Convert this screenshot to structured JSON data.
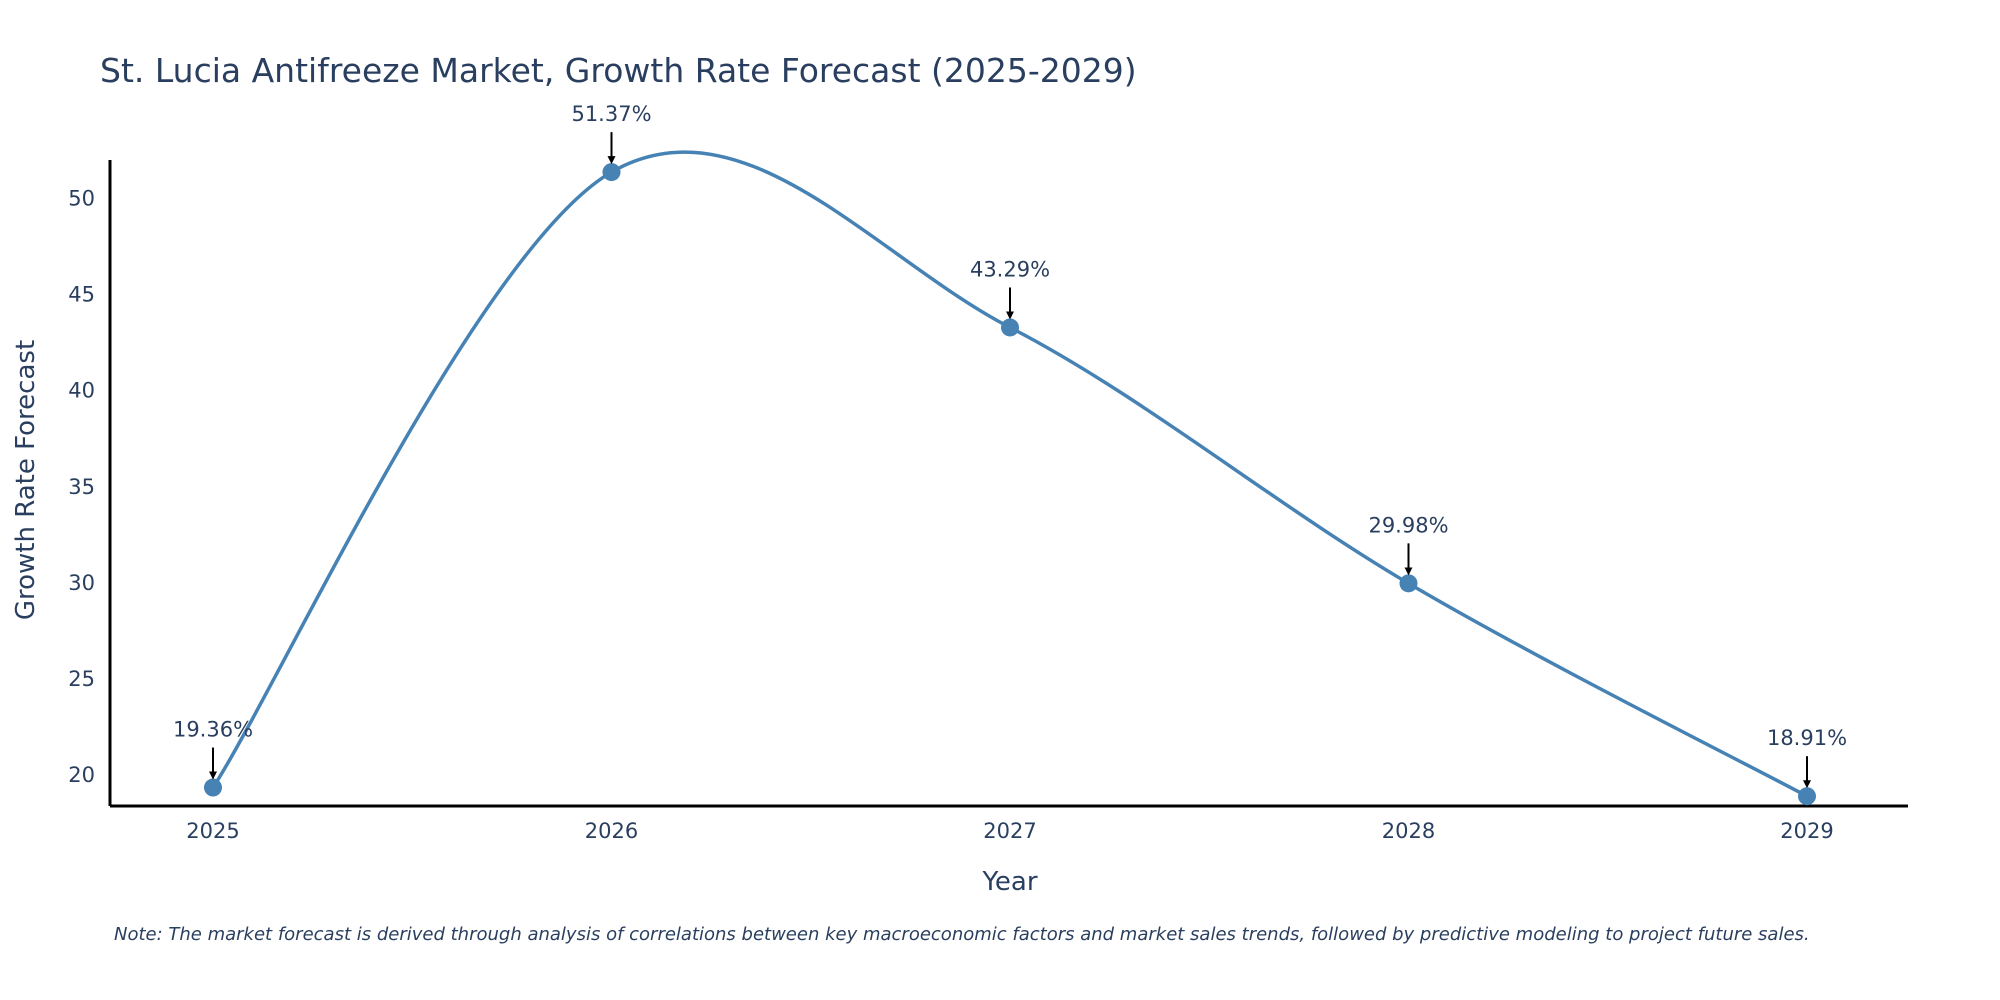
{
  "chart_data": {
    "type": "line",
    "title": "St. Lucia Antifreeze Market, Growth Rate Forecast (2025-2029)",
    "xlabel": "Year",
    "ylabel": "Growth Rate Forecast",
    "x": [
      "2025",
      "2026",
      "2027",
      "2028",
      "2029"
    ],
    "series": [
      {
        "name": "Growth Rate Forecast",
        "values": [
          19.36,
          51.37,
          43.29,
          29.98,
          18.91
        ]
      }
    ],
    "data_labels": [
      "19.36%",
      "51.37%",
      "43.29%",
      "29.98%",
      "18.91%"
    ],
    "yticks": [
      20,
      25,
      30,
      35,
      40,
      45,
      50
    ],
    "ylim": [
      18.4,
      52.0
    ],
    "line_shape": "spline",
    "grid": false,
    "note": "Note: The market forecast is derived through analysis of correlations between key macroeconomic factors and market sales trends, followed by predictive modeling to project future sales."
  },
  "colors": {
    "line": "#4682b4",
    "marker": "#4682b4",
    "axis": "#000000",
    "text": "#2a3f5f",
    "arrow": "#000000"
  }
}
